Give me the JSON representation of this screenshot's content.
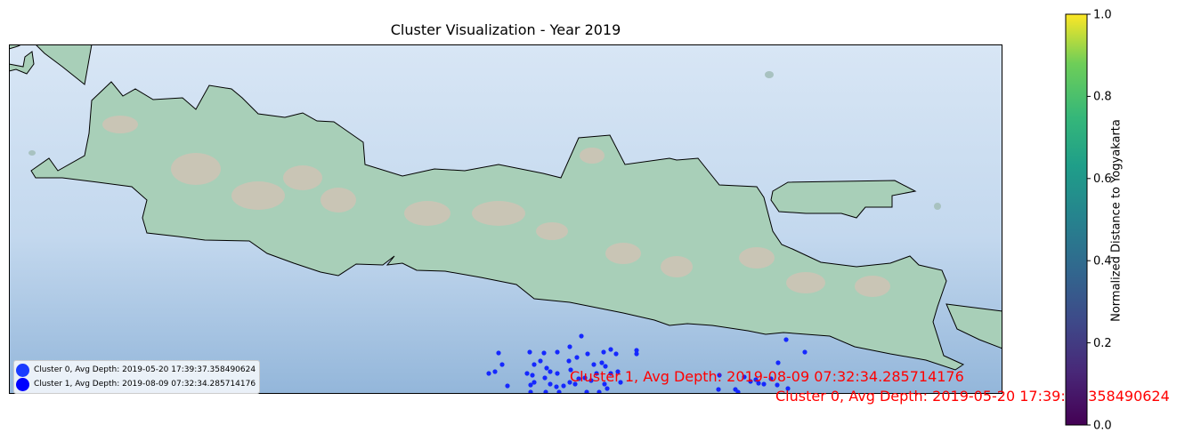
{
  "map": {
    "title": "Cluster Visualization - Year 2019",
    "colors": {
      "sea_light": "#d8e6f5",
      "sea_dark": "#95b8dc",
      "land": "#a8cfb8",
      "relief": "#e0b8b0",
      "points": "#1528ff"
    }
  },
  "legend": {
    "items": [
      {
        "label": "Cluster 0, Avg Depth: 2019-05-20 17:39:37.358490624",
        "color": "#1a3cff"
      },
      {
        "label": "Cluster 1, Avg Depth: 2019-08-09 07:32:34.285714176",
        "color": "#0000ff"
      }
    ]
  },
  "annotations": {
    "cluster1": "Cluster 1, Avg Depth: 2019-08-09 07:32:34.285714176",
    "cluster0": "Cluster 0, Avg Depth: 2019-05-20 17:39:37.358490624",
    "color": "#ff0000"
  },
  "colorbar": {
    "label": "Normalized Distance to Yogyakarta",
    "ticks": [
      "0.0",
      "0.2",
      "0.4",
      "0.6",
      "0.8",
      "1.0"
    ],
    "colormap": "viridis"
  }
}
